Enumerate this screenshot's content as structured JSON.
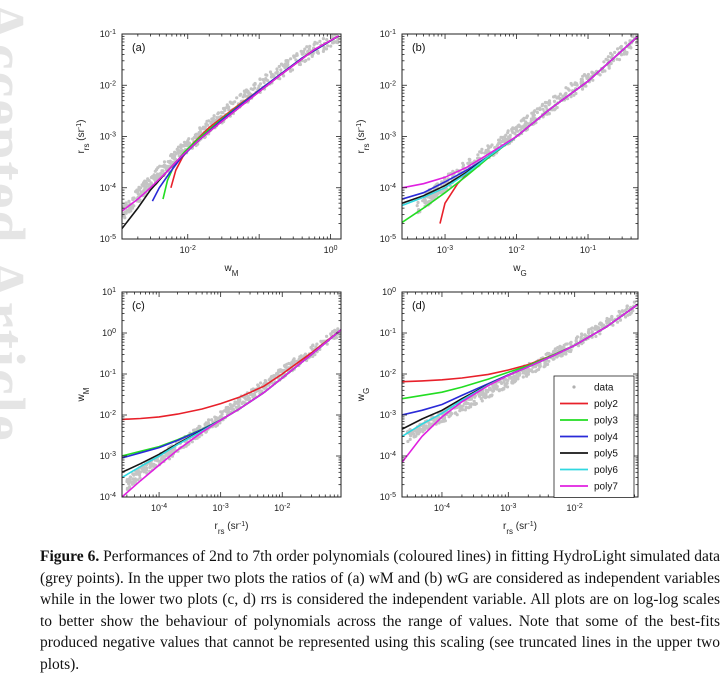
{
  "watermark": "Accepted Article",
  "caption": {
    "label": "Figure 6.",
    "text": "Performances of 2nd to 7th order polynomials (coloured lines) in fitting HydroLight simulated data (grey points). In the upper two plots the ratios of (a) wM and (b) wG are considered as independent variables while in the lower two plots (c, d) rrs is considered the independent variable. All plots are on log-log scales to better show the behaviour of polynomials across the range of values. Note that some of the best-fits produced negative values that cannot be represented using this scaling (see truncated lines in the upper two plots)."
  },
  "legend": {
    "placement": "lower-right of panel (d)",
    "entries": [
      {
        "name": "data",
        "color": "#b0b0b0",
        "style": "dot"
      },
      {
        "name": "poly2",
        "color": "#e8202a",
        "style": "line"
      },
      {
        "name": "poly3",
        "color": "#22dd22",
        "style": "line"
      },
      {
        "name": "poly4",
        "color": "#2a2ad8",
        "style": "line"
      },
      {
        "name": "poly5",
        "color": "#151515",
        "style": "line"
      },
      {
        "name": "poly6",
        "color": "#30d8e0",
        "style": "line"
      },
      {
        "name": "poly7",
        "color": "#e020e0",
        "style": "line"
      }
    ]
  },
  "chart_data": [
    {
      "panel": "(a)",
      "type": "line",
      "log_x": true,
      "log_y": true,
      "xlabel": "w_M",
      "ylabel": "r_rs (sr^-1)",
      "xlim": [
        0.0012,
        1.4
      ],
      "ylim": [
        1e-05,
        0.1
      ],
      "xticks": [
        {
          "v": 0.01,
          "base": "10",
          "exp": "-2"
        },
        {
          "v": 1,
          "base": "10",
          "exp": "0"
        }
      ],
      "yticks": [
        {
          "v": 1e-05,
          "base": "10",
          "exp": "-5"
        },
        {
          "v": 0.0001,
          "base": "10",
          "exp": "-4"
        },
        {
          "v": 0.001,
          "base": "10",
          "exp": "-3"
        },
        {
          "v": 0.01,
          "base": "10",
          "exp": "-2"
        },
        {
          "v": 0.1,
          "base": "10",
          "exp": "-1"
        }
      ],
      "data_cloud": {
        "x": [
          0.0012,
          0.002,
          0.003,
          0.005,
          0.008,
          0.013,
          0.02,
          0.04,
          0.08,
          0.2,
          0.5,
          1.3
        ],
        "y": [
          3e-05,
          7e-05,
          0.00013,
          0.00026,
          0.0005,
          0.0009,
          0.0016,
          0.0035,
          0.0075,
          0.019,
          0.045,
          0.09
        ]
      },
      "series": [
        {
          "name": "poly2",
          "x": [
            0.0058,
            0.0068,
            0.0085,
            0.012,
            0.02,
            0.05,
            0.15,
            0.5,
            1.3
          ],
          "y": [
            0.0001,
            0.00022,
            0.0004,
            0.00075,
            0.0015,
            0.004,
            0.012,
            0.042,
            0.092
          ]
        },
        {
          "name": "poly3",
          "x": [
            0.0045,
            0.0052,
            0.0065,
            0.009,
            0.014,
            0.03,
            0.1,
            0.4,
            1.3
          ],
          "y": [
            6e-05,
            0.00014,
            0.00028,
            0.0005,
            0.0009,
            0.0022,
            0.008,
            0.034,
            0.092
          ]
        },
        {
          "name": "poly4",
          "x": [
            0.0032,
            0.004,
            0.0055,
            0.008,
            0.013,
            0.03,
            0.1,
            0.4,
            1.3
          ],
          "y": [
            5.5e-05,
            0.0001,
            0.00019,
            0.00038,
            0.00075,
            0.0021,
            0.008,
            0.034,
            0.092
          ]
        },
        {
          "name": "poly5",
          "x": [
            0.0012,
            0.002,
            0.003,
            0.005,
            0.008,
            0.015,
            0.05,
            0.2,
            0.6,
            1.3
          ],
          "y": [
            1.6e-05,
            4e-05,
            9e-05,
            0.0002,
            0.0004,
            0.0009,
            0.0035,
            0.016,
            0.05,
            0.092
          ]
        },
        {
          "name": "poly7",
          "x": [
            0.0012,
            0.002,
            0.003,
            0.005,
            0.008,
            0.015,
            0.05,
            0.2,
            0.6,
            1.3
          ],
          "y": [
            3.5e-05,
            6e-05,
            0.0001,
            0.0002,
            0.0004,
            0.0009,
            0.0035,
            0.016,
            0.05,
            0.092
          ]
        }
      ]
    },
    {
      "panel": "(b)",
      "type": "line",
      "log_x": true,
      "log_y": true,
      "xlabel": "w_G",
      "ylabel": "r_rs (sr^-1)",
      "xlim": [
        0.00025,
        0.5
      ],
      "ylim": [
        1e-05,
        0.1
      ],
      "xticks": [
        {
          "v": 0.001,
          "base": "10",
          "exp": "-3"
        },
        {
          "v": 0.01,
          "base": "10",
          "exp": "-2"
        },
        {
          "v": 0.1,
          "base": "10",
          "exp": "-1"
        }
      ],
      "yticks": [
        {
          "v": 1e-05,
          "base": "10",
          "exp": "-5"
        },
        {
          "v": 0.0001,
          "base": "10",
          "exp": "-4"
        },
        {
          "v": 0.001,
          "base": "10",
          "exp": "-3"
        },
        {
          "v": 0.01,
          "base": "10",
          "exp": "-2"
        },
        {
          "v": 0.1,
          "base": "10",
          "exp": "-1"
        }
      ],
      "data_cloud": {
        "x": [
          0.0004,
          0.0007,
          0.001,
          0.002,
          0.004,
          0.008,
          0.015,
          0.03,
          0.08,
          0.2,
          0.5
        ],
        "y": [
          4e-05,
          8e-05,
          0.00012,
          0.00025,
          0.0005,
          0.001,
          0.002,
          0.004,
          0.011,
          0.03,
          0.085
        ]
      },
      "series": [
        {
          "name": "poly2",
          "x": [
            0.00085,
            0.001,
            0.0015,
            0.0025,
            0.005,
            0.01,
            0.03,
            0.1,
            0.5
          ],
          "y": [
            2e-05,
            5e-05,
            0.00012,
            0.00025,
            0.0005,
            0.001,
            0.0035,
            0.012,
            0.09
          ]
        },
        {
          "name": "poly3",
          "x": [
            0.00025,
            0.0005,
            0.001,
            0.002,
            0.004,
            0.01,
            0.03,
            0.1,
            0.5
          ],
          "y": [
            2.1e-05,
            4e-05,
            8e-05,
            0.00017,
            0.00038,
            0.001,
            0.0035,
            0.012,
            0.09
          ]
        },
        {
          "name": "poly4",
          "x": [
            0.00025,
            0.0005,
            0.001,
            0.002,
            0.004,
            0.01,
            0.03,
            0.1,
            0.5
          ],
          "y": [
            6e-05,
            8e-05,
            0.00013,
            0.00022,
            0.0004,
            0.001,
            0.0035,
            0.012,
            0.09
          ]
        },
        {
          "name": "poly5",
          "x": [
            0.00025,
            0.0005,
            0.001,
            0.002,
            0.004,
            0.01,
            0.03,
            0.1,
            0.5
          ],
          "y": [
            5e-05,
            7e-05,
            0.00011,
            0.0002,
            0.0004,
            0.001,
            0.0035,
            0.012,
            0.09
          ]
        },
        {
          "name": "poly6",
          "x": [
            0.00025,
            0.0005,
            0.001,
            0.002,
            0.004,
            0.01,
            0.03,
            0.1,
            0.5
          ],
          "y": [
            4.5e-05,
            6.5e-05,
            0.0001,
            0.00019,
            0.0004,
            0.001,
            0.0035,
            0.012,
            0.09
          ]
        },
        {
          "name": "poly7",
          "x": [
            0.00025,
            0.0005,
            0.001,
            0.002,
            0.004,
            0.01,
            0.03,
            0.1,
            0.5
          ],
          "y": [
            0.0001,
            0.00012,
            0.00016,
            0.00025,
            0.00045,
            0.001,
            0.0035,
            0.012,
            0.09
          ]
        }
      ]
    },
    {
      "panel": "(c)",
      "type": "line",
      "log_x": true,
      "log_y": true,
      "xlabel": "r_rs (sr^-1)",
      "ylabel": "w_M",
      "xlim": [
        2.5e-05,
        0.09
      ],
      "ylim": [
        0.0001,
        10
      ],
      "xticks": [
        {
          "v": 0.0001,
          "base": "10",
          "exp": "-4"
        },
        {
          "v": 0.001,
          "base": "10",
          "exp": "-3"
        },
        {
          "v": 0.01,
          "base": "10",
          "exp": "-2"
        }
      ],
      "yticks": [
        {
          "v": 0.0001,
          "base": "10",
          "exp": "-4"
        },
        {
          "v": 0.001,
          "base": "10",
          "exp": "-3"
        },
        {
          "v": 0.01,
          "base": "10",
          "exp": "-2"
        },
        {
          "v": 0.1,
          "base": "10",
          "exp": "-1"
        },
        {
          "v": 1,
          "base": "10",
          "exp": "0"
        },
        {
          "v": 10,
          "base": "10",
          "exp": "1"
        }
      ],
      "data_cloud": {
        "x": [
          3e-05,
          5e-05,
          0.0001,
          0.0002,
          0.0004,
          0.0008,
          0.0015,
          0.003,
          0.006,
          0.012,
          0.03,
          0.08
        ],
        "y": [
          0.0002,
          0.0004,
          0.0008,
          0.0016,
          0.0035,
          0.007,
          0.014,
          0.03,
          0.06,
          0.13,
          0.35,
          1.1
        ]
      },
      "series": [
        {
          "name": "poly2",
          "x": [
            2.5e-05,
            5e-05,
            0.0001,
            0.0002,
            0.0005,
            0.001,
            0.002,
            0.005,
            0.01,
            0.03,
            0.09
          ],
          "y": [
            0.0078,
            0.0082,
            0.009,
            0.0105,
            0.014,
            0.019,
            0.027,
            0.05,
            0.1,
            0.33,
            1.2
          ]
        },
        {
          "name": "poly3",
          "x": [
            2.5e-05,
            5e-05,
            0.0001,
            0.0002,
            0.0005,
            0.001,
            0.002,
            0.005,
            0.01,
            0.03,
            0.09
          ],
          "y": [
            0.001,
            0.0013,
            0.0017,
            0.0025,
            0.0045,
            0.0075,
            0.014,
            0.035,
            0.08,
            0.3,
            1.2
          ]
        },
        {
          "name": "poly4",
          "x": [
            2.5e-05,
            5e-05,
            0.0001,
            0.0002,
            0.0005,
            0.001,
            0.002,
            0.005,
            0.01,
            0.03,
            0.09
          ],
          "y": [
            0.0009,
            0.0012,
            0.0016,
            0.0024,
            0.0044,
            0.0075,
            0.014,
            0.035,
            0.08,
            0.3,
            1.2
          ]
        },
        {
          "name": "poly5",
          "x": [
            2.5e-05,
            5e-05,
            0.0001,
            0.0002,
            0.0005,
            0.001,
            0.002,
            0.005,
            0.01,
            0.03,
            0.09
          ],
          "y": [
            0.0004,
            0.00065,
            0.0011,
            0.002,
            0.0042,
            0.0075,
            0.014,
            0.035,
            0.08,
            0.3,
            1.2
          ]
        },
        {
          "name": "poly6",
          "x": [
            2.5e-05,
            5e-05,
            0.0001,
            0.0002,
            0.0005,
            0.001,
            0.002,
            0.005,
            0.01,
            0.03,
            0.09
          ],
          "y": [
            0.0003,
            0.00055,
            0.001,
            0.0019,
            0.0041,
            0.0075,
            0.014,
            0.035,
            0.08,
            0.3,
            1.2
          ]
        },
        {
          "name": "poly7",
          "x": [
            2.5e-05,
            5e-05,
            0.0001,
            0.0002,
            0.0005,
            0.001,
            0.002,
            0.005,
            0.01,
            0.03,
            0.09
          ],
          "y": [
            0.0001,
            0.00025,
            0.0006,
            0.0014,
            0.0038,
            0.0075,
            0.014,
            0.035,
            0.08,
            0.3,
            1.2
          ]
        }
      ]
    },
    {
      "panel": "(d)",
      "type": "line",
      "log_x": true,
      "log_y": true,
      "xlabel": "r_rs (sr^-1)",
      "ylabel": "w_G",
      "xlim": [
        2.5e-05,
        0.09
      ],
      "ylim": [
        1e-05,
        1
      ],
      "xticks": [
        {
          "v": 0.0001,
          "base": "10",
          "exp": "-4"
        },
        {
          "v": 0.001,
          "base": "10",
          "exp": "-3"
        },
        {
          "v": 0.01,
          "base": "10",
          "exp": "-2"
        }
      ],
      "yticks": [
        {
          "v": 1e-05,
          "base": "10",
          "exp": "-5"
        },
        {
          "v": 0.0001,
          "base": "10",
          "exp": "-4"
        },
        {
          "v": 0.001,
          "base": "10",
          "exp": "-3"
        },
        {
          "v": 0.01,
          "base": "10",
          "exp": "-2"
        },
        {
          "v": 0.1,
          "base": "10",
          "exp": "-1"
        },
        {
          "v": 1,
          "base": "10",
          "exp": "0"
        }
      ],
      "data_cloud": {
        "x": [
          3e-05,
          5e-05,
          0.0001,
          0.0002,
          0.0004,
          0.0008,
          0.0015,
          0.003,
          0.006,
          0.012,
          0.03,
          0.08
        ],
        "y": [
          0.0003,
          0.0005,
          0.0009,
          0.0016,
          0.003,
          0.0055,
          0.01,
          0.018,
          0.035,
          0.065,
          0.16,
          0.45
        ]
      },
      "series": [
        {
          "name": "poly2",
          "x": [
            2.5e-05,
            5e-05,
            0.0001,
            0.0002,
            0.0005,
            0.001,
            0.002,
            0.005,
            0.01,
            0.03,
            0.09
          ],
          "y": [
            0.0065,
            0.0068,
            0.0072,
            0.008,
            0.0098,
            0.0125,
            0.017,
            0.03,
            0.05,
            0.14,
            0.5
          ]
        },
        {
          "name": "poly3",
          "x": [
            2.5e-05,
            5e-05,
            0.0001,
            0.0002,
            0.0005,
            0.001,
            0.002,
            0.005,
            0.01,
            0.03,
            0.09
          ],
          "y": [
            0.0025,
            0.003,
            0.0036,
            0.0048,
            0.0075,
            0.011,
            0.016,
            0.03,
            0.05,
            0.14,
            0.5
          ]
        },
        {
          "name": "poly4",
          "x": [
            2.5e-05,
            5e-05,
            0.0001,
            0.0002,
            0.0005,
            0.001,
            0.002,
            0.005,
            0.01,
            0.03,
            0.09
          ],
          "y": [
            0.001,
            0.0013,
            0.0018,
            0.003,
            0.0058,
            0.0095,
            0.015,
            0.029,
            0.05,
            0.14,
            0.5
          ]
        },
        {
          "name": "poly5",
          "x": [
            2.5e-05,
            5e-05,
            0.0001,
            0.0002,
            0.0005,
            0.001,
            0.002,
            0.005,
            0.01,
            0.03,
            0.09
          ],
          "y": [
            0.00045,
            0.0008,
            0.0013,
            0.0025,
            0.0055,
            0.0093,
            0.015,
            0.029,
            0.05,
            0.14,
            0.5
          ]
        },
        {
          "name": "poly6",
          "x": [
            2.5e-05,
            5e-05,
            0.0001,
            0.0002,
            0.0005,
            0.001,
            0.002,
            0.005,
            0.01,
            0.03,
            0.09
          ],
          "y": [
            0.0003,
            0.0006,
            0.0011,
            0.0023,
            0.0054,
            0.0093,
            0.015,
            0.029,
            0.05,
            0.14,
            0.5
          ]
        },
        {
          "name": "poly7",
          "x": [
            2.5e-05,
            5e-05,
            0.0001,
            0.0002,
            0.0005,
            0.001,
            0.002,
            0.005,
            0.01,
            0.03,
            0.09
          ],
          "y": [
            7e-05,
            0.0003,
            0.0009,
            0.0021,
            0.0052,
            0.0093,
            0.015,
            0.029,
            0.05,
            0.14,
            0.5
          ]
        }
      ]
    }
  ]
}
